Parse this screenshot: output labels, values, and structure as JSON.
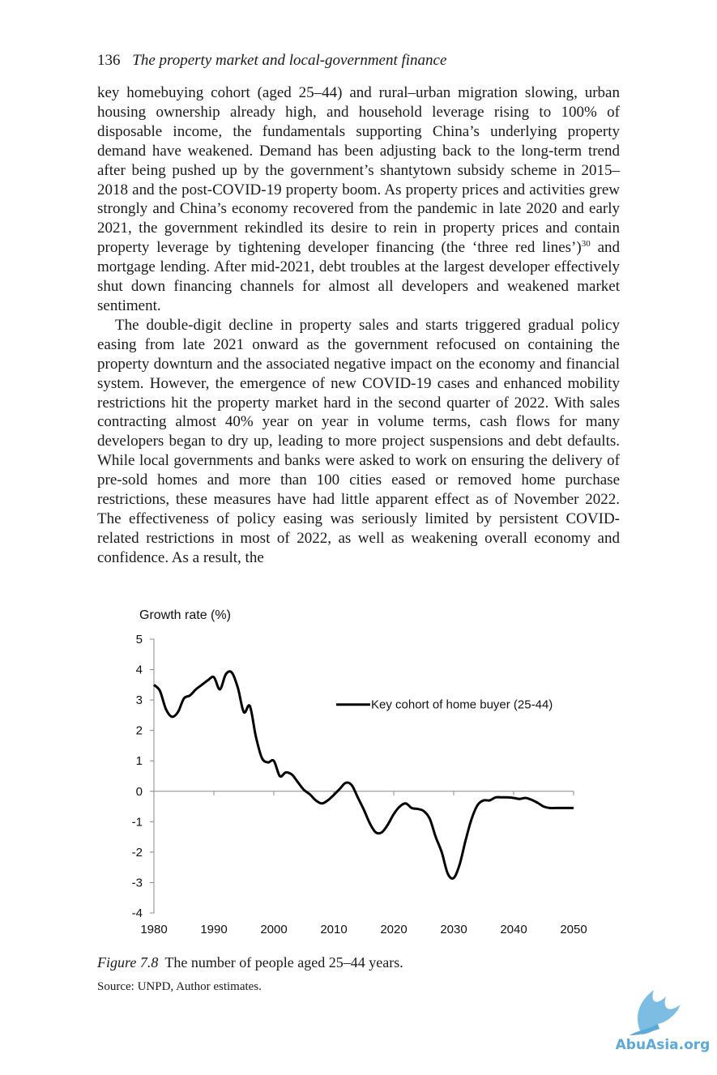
{
  "header": {
    "page_number": "136",
    "running_title": "The property market and local-government finance"
  },
  "body": {
    "para1": "key homebuying cohort (aged 25–44) and rural–urban migration slowing, urban housing ownership already high, and household leverage rising to 100% of disposable income, the fundamentals supporting China’s underlying property demand have weakened. Demand has been adjusting back to the long-term trend after being pushed up by the government’s shantytown subsidy scheme in 2015–2018 and the post-COVID-19 property boom. As property prices and activities grew strongly and China’s economy recovered from the pandemic in late 2020 and early 2021, the government rekindled its desire to rein in property prices and contain property leverage by tightening developer financing (the ‘three red lines’)",
    "para1_note": "30",
    "para1_end": " and mortgage lending. After mid-2021, debt troubles at the largest developer effectively shut down financing channels for almost all developers and weakened market sentiment.",
    "para2": "The double-digit decline in property sales and starts triggered gradual policy easing from late 2021 onward as the government refocused on containing the property downturn and the associated negative impact on the economy and financial system. However, the emergence of new COVID-19 cases and enhanced mobility restrictions hit the property market hard in the second quarter of 2022. With sales contracting almost 40% year on year in volume terms, cash flows for many developers began to dry up, leading to more project suspensions and debt defaults. While local governments and banks were asked to work on ensuring the delivery of pre-sold homes and more than 100 cities eased or removed home purchase restrictions, these measures have had little apparent effect as of November 2022. The effectiveness of policy easing was seriously limited by persistent COVID-related restrictions in most of 2022, as well as weakening overall economy and confidence. As a result, the"
  },
  "figure": {
    "label": "Figure 7.8",
    "caption": "The number of people aged 25–44 years.",
    "source": "Source: UNPD, Author estimates."
  },
  "watermark": {
    "text": "AbuAsia.org"
  },
  "chart_data": {
    "type": "line",
    "title": "",
    "ylabel": "Growth rate (%)",
    "xlabel": "",
    "xlim": [
      1980,
      2050
    ],
    "ylim": [
      -4,
      5
    ],
    "xticks": [
      "1980",
      "1990",
      "2000",
      "2010",
      "2020",
      "2030",
      "2040",
      "2050"
    ],
    "yticks": [
      "5",
      "4",
      "3",
      "2",
      "1",
      "0",
      "-1",
      "-2",
      "-3",
      "-4"
    ],
    "legend": "right, upper middle",
    "series": [
      {
        "name": "Key cohort of home buyer (25-44)",
        "color": "#000000",
        "x": [
          1980,
          1981,
          1982,
          1983,
          1984,
          1985,
          1986,
          1987,
          1988,
          1989,
          1990,
          1991,
          1992,
          1993,
          1994,
          1995,
          1996,
          1997,
          1998,
          1999,
          2000,
          2001,
          2002,
          2003,
          2004,
          2005,
          2006,
          2007,
          2008,
          2009,
          2010,
          2011,
          2012,
          2013,
          2014,
          2015,
          2016,
          2017,
          2018,
          2019,
          2020,
          2021,
          2022,
          2023,
          2024,
          2025,
          2026,
          2027,
          2028,
          2029,
          2030,
          2031,
          2032,
          2033,
          2034,
          2035,
          2036,
          2037,
          2038,
          2039,
          2040,
          2041,
          2042,
          2043,
          2044,
          2045,
          2046,
          2047,
          2048,
          2049,
          2050
        ],
        "values": [
          3.5,
          3.3,
          2.7,
          2.45,
          2.6,
          3.05,
          3.15,
          3.35,
          3.5,
          3.65,
          3.75,
          3.35,
          3.85,
          3.9,
          3.4,
          2.6,
          2.8,
          1.8,
          1.1,
          0.95,
          1.0,
          0.5,
          0.62,
          0.55,
          0.3,
          0.05,
          -0.1,
          -0.3,
          -0.4,
          -0.3,
          -0.12,
          0.08,
          0.28,
          0.2,
          -0.2,
          -0.6,
          -1.05,
          -1.35,
          -1.35,
          -1.1,
          -0.75,
          -0.5,
          -0.4,
          -0.55,
          -0.58,
          -0.65,
          -0.9,
          -1.5,
          -2.0,
          -2.7,
          -2.85,
          -2.4,
          -1.6,
          -0.9,
          -0.45,
          -0.3,
          -0.3,
          -0.2,
          -0.2,
          -0.2,
          -0.22,
          -0.25,
          -0.22,
          -0.28,
          -0.38,
          -0.5,
          -0.55,
          -0.55,
          -0.55,
          -0.55,
          -0.55
        ]
      }
    ]
  }
}
